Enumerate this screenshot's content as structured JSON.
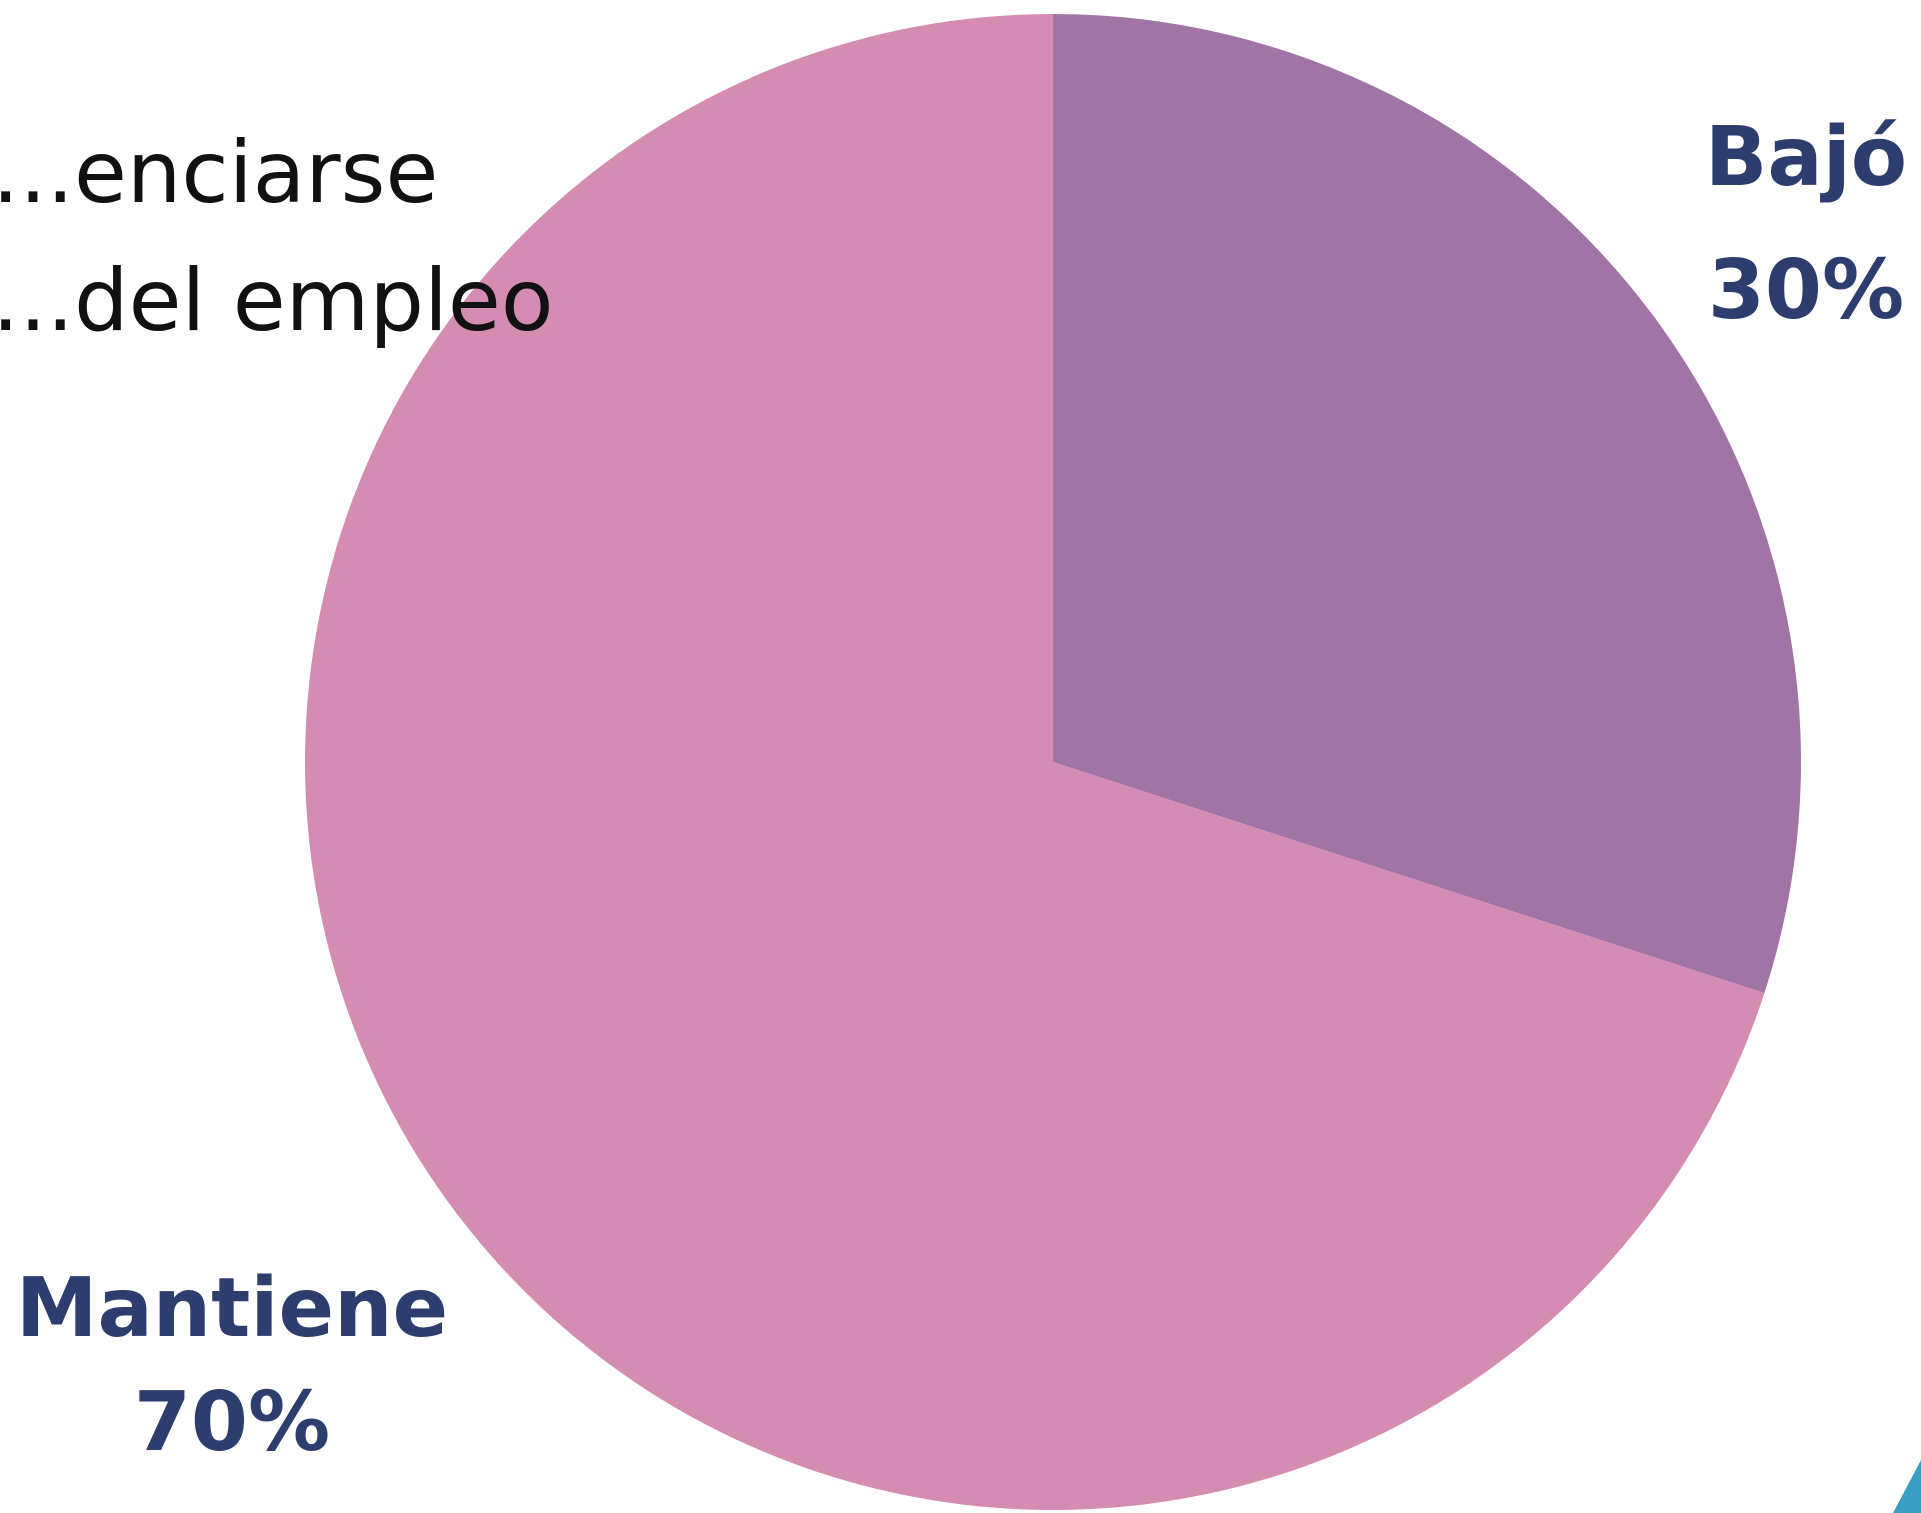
{
  "title_lines": [
    "...enciarse",
    "...del empleo"
  ],
  "chart_data": {
    "type": "pie",
    "slices": [
      {
        "label": "Bajó",
        "value": 30,
        "value_label": "30%",
        "color": "#a074a5"
      },
      {
        "label": "Mantiene",
        "value": 70,
        "value_label": "70%",
        "color": "#d48cb3"
      }
    ],
    "start_angle_deg": 0,
    "direction": "clockwise",
    "label_color": "#2d3e6e",
    "accent_color": "#3a9ec4"
  }
}
